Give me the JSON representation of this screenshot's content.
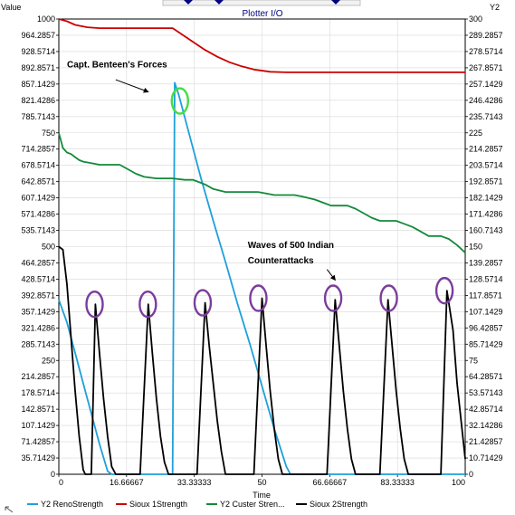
{
  "chart_data": {
    "type": "line",
    "title": "Plotter I/O",
    "left_axis_label": "Value",
    "right_axis_label": "Y2",
    "xlabel": "Time",
    "xlim": [
      0,
      100
    ],
    "ylim": [
      0,
      1000
    ],
    "y2lim": [
      0,
      300
    ],
    "x_ticks": [
      "0",
      "16.66667",
      "33.33333",
      "50",
      "66.66667",
      "83.33333",
      "100"
    ],
    "y_ticks": [
      "1000",
      "964.2857",
      "928.5714",
      "892.8571",
      "857.1429",
      "821.4286",
      "785.7143",
      "750",
      "714.2857",
      "678.5714",
      "642.8571",
      "607.1429",
      "571.4286",
      "535.7143",
      "500",
      "464.2857",
      "428.5714",
      "392.8571",
      "357.1429",
      "321.4286",
      "285.7143",
      "250",
      "214.2857",
      "178.5714",
      "142.8571",
      "107.1429",
      "71.42857",
      "35.71429",
      "0"
    ],
    "y2_ticks": [
      "300",
      "289.2857",
      "278.5714",
      "267.8571",
      "257.1429",
      "246.4286",
      "235.7143",
      "225",
      "214.2857",
      "203.5714",
      "192.8571",
      "182.1429",
      "171.4286",
      "160.7143",
      "150",
      "139.2857",
      "128.5714",
      "117.8571",
      "107.1429",
      "96.42857",
      "85.71429",
      "75",
      "64.28571",
      "53.57143",
      "42.85714",
      "32.14286",
      "21.42857",
      "10.71429",
      "0"
    ],
    "series": [
      {
        "name": "Y2 RenoStrength",
        "color": "#1ea0dc",
        "axis": "right",
        "points": [
          [
            0,
            115
          ],
          [
            2,
            100
          ],
          [
            4,
            80
          ],
          [
            6,
            60
          ],
          [
            8,
            40
          ],
          [
            10,
            20
          ],
          [
            12,
            2
          ],
          [
            13,
            0
          ],
          [
            28,
            0
          ],
          [
            28.5,
            258
          ],
          [
            29.5,
            250
          ],
          [
            32,
            225
          ],
          [
            35,
            195
          ],
          [
            38,
            167
          ],
          [
            41,
            140
          ],
          [
            44,
            112
          ],
          [
            47,
            86
          ],
          [
            50,
            58
          ],
          [
            53,
            30
          ],
          [
            56,
            5
          ],
          [
            57,
            0
          ],
          [
            100,
            0
          ]
        ]
      },
      {
        "name": "Sioux 1Strength",
        "color": "#cc0000",
        "axis": "left",
        "points": [
          [
            0,
            1000
          ],
          [
            2,
            995
          ],
          [
            4,
            987
          ],
          [
            7,
            982
          ],
          [
            10,
            980
          ],
          [
            28,
            980
          ],
          [
            30,
            968
          ],
          [
            33,
            950
          ],
          [
            36,
            932
          ],
          [
            39,
            917
          ],
          [
            42,
            905
          ],
          [
            45,
            896
          ],
          [
            48,
            889
          ],
          [
            52,
            884
          ],
          [
            56,
            883
          ],
          [
            100,
            883
          ]
        ]
      },
      {
        "name": "Y2 Custer Strength",
        "color": "#138a3a",
        "axis": "right",
        "points": [
          [
            0,
            225
          ],
          [
            1,
            215
          ],
          [
            2,
            212
          ],
          [
            3,
            211
          ],
          [
            4,
            209
          ],
          [
            5,
            207
          ],
          [
            6,
            206
          ],
          [
            8,
            205
          ],
          [
            10,
            204
          ],
          [
            13,
            204
          ],
          [
            15,
            204
          ],
          [
            17,
            201
          ],
          [
            19,
            198
          ],
          [
            21,
            196
          ],
          [
            24,
            195
          ],
          [
            28,
            195
          ],
          [
            31,
            194
          ],
          [
            33,
            194
          ],
          [
            34,
            193
          ],
          [
            36,
            191
          ],
          [
            38,
            188
          ],
          [
            41,
            186
          ],
          [
            49,
            186
          ],
          [
            51,
            185
          ],
          [
            53,
            184
          ],
          [
            58,
            184
          ],
          [
            60,
            183
          ],
          [
            63,
            181
          ],
          [
            65,
            179
          ],
          [
            67,
            177
          ],
          [
            71,
            177
          ],
          [
            73,
            175
          ],
          [
            75,
            172
          ],
          [
            77,
            169
          ],
          [
            79,
            167
          ],
          [
            83,
            167
          ],
          [
            85,
            165
          ],
          [
            87,
            163
          ],
          [
            89,
            160
          ],
          [
            91,
            157
          ],
          [
            94,
            157
          ],
          [
            96,
            155
          ],
          [
            98,
            151
          ],
          [
            100,
            146
          ]
        ]
      },
      {
        "name": "Sioux 2Strength",
        "color": "#000000",
        "axis": "right",
        "points": [
          [
            0,
            150
          ],
          [
            1,
            148
          ],
          [
            2,
            125
          ],
          [
            3,
            90
          ],
          [
            4,
            55
          ],
          [
            5,
            25
          ],
          [
            6,
            3
          ],
          [
            6.5,
            0
          ],
          [
            8,
            0
          ],
          [
            9,
            112
          ],
          [
            10,
            80
          ],
          [
            11,
            50
          ],
          [
            12,
            25
          ],
          [
            13,
            5
          ],
          [
            14,
            0
          ],
          [
            20,
            0
          ],
          [
            22,
            112
          ],
          [
            23,
            80
          ],
          [
            24,
            50
          ],
          [
            25,
            25
          ],
          [
            26,
            8
          ],
          [
            27,
            0
          ],
          [
            34,
            0
          ],
          [
            36,
            113
          ],
          [
            37,
            85
          ],
          [
            38,
            60
          ],
          [
            39,
            35
          ],
          [
            40,
            15
          ],
          [
            41,
            0
          ],
          [
            48,
            0
          ],
          [
            50,
            116
          ],
          [
            51,
            85
          ],
          [
            52,
            55
          ],
          [
            53,
            30
          ],
          [
            54,
            10
          ],
          [
            55,
            0
          ],
          [
            66,
            0
          ],
          [
            68,
            115
          ],
          [
            69,
            85
          ],
          [
            70,
            55
          ],
          [
            71,
            30
          ],
          [
            72,
            10
          ],
          [
            73,
            0
          ],
          [
            79,
            0
          ],
          [
            81,
            115
          ],
          [
            82,
            85
          ],
          [
            83,
            55
          ],
          [
            84,
            30
          ],
          [
            85,
            10
          ],
          [
            86,
            0
          ],
          [
            94,
            0
          ],
          [
            95.5,
            121
          ],
          [
            97,
            95
          ],
          [
            98,
            60
          ],
          [
            99,
            35
          ],
          [
            100,
            10
          ]
        ]
      }
    ],
    "markers": [
      {
        "x": 29.8,
        "y2": 246,
        "color": "#44dd44"
      },
      {
        "x": 8.8,
        "y2": 112,
        "color": "#7b3d9b"
      },
      {
        "x": 21.9,
        "y2": 112,
        "color": "#7b3d9b"
      },
      {
        "x": 35.4,
        "y2": 113,
        "color": "#7b3d9b"
      },
      {
        "x": 49.1,
        "y2": 116,
        "color": "#7b3d9b"
      },
      {
        "x": 67.5,
        "y2": 116,
        "color": "#7b3d9b"
      },
      {
        "x": 81.2,
        "y2": 116,
        "color": "#7b3d9b"
      },
      {
        "x": 94.9,
        "y2": 121,
        "color": "#7b3d9b"
      }
    ],
    "annotations": [
      {
        "text": "Capt. Benteen's Forces",
        "x": 2,
        "y2": 268,
        "arrow_from": [
          14,
          260
        ],
        "arrow_to": [
          22,
          252
        ]
      },
      {
        "text": "Waves of 500 Indian",
        "x": 46.5,
        "y2": 149,
        "arrow_from": [
          66,
          135
        ],
        "arrow_to": [
          68,
          128
        ]
      },
      {
        "text": "Counterattacks",
        "x": 46.5,
        "y2": 139
      }
    ],
    "legend_placement": "bottom",
    "grid": true
  }
}
